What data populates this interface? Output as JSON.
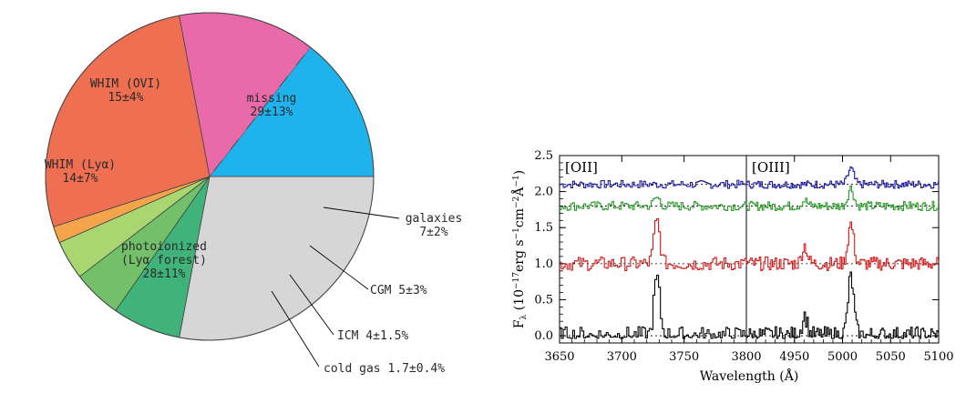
{
  "chart_data": [
    {
      "type": "pie",
      "slices": [
        {
          "key": "missing",
          "value": 29,
          "color": "#d6d6d6",
          "lines": [
            "missing",
            "29±13%"
          ]
        },
        {
          "key": "galaxies",
          "value": 7,
          "color": "#3fb37a",
          "lines": [
            "galaxies",
            "7±2%"
          ]
        },
        {
          "key": "cgm",
          "value": 5,
          "color": "#72c16a",
          "lines": [
            "CGM 5±3%"
          ]
        },
        {
          "key": "icm",
          "value": 4,
          "color": "#a9d670",
          "lines": [
            "ICM 4±1.5%"
          ]
        },
        {
          "key": "cold-gas",
          "value": 1.7,
          "color": "#f4a54c",
          "lines": [
            "cold gas 1.7±0.4%"
          ]
        },
        {
          "key": "photoionized",
          "value": 28,
          "color": "#ef6f52",
          "lines": [
            "photoionized",
            "(Lyα forest)",
            "28±11%"
          ]
        },
        {
          "key": "whim-lya",
          "value": 14,
          "color": "#e96aa9",
          "lines": [
            "WHIM (Lyα)",
            "14±7%"
          ]
        },
        {
          "key": "whim-ovi",
          "value": 15,
          "color": "#1fb3ee",
          "lines": [
            "WHIM (OVI)",
            "15±4%"
          ]
        }
      ],
      "start_angle_deg": 0,
      "direction": "clockwise"
    },
    {
      "type": "line",
      "panels": [
        {
          "label": "[OII]",
          "xlim": [
            3650,
            3800
          ],
          "xticks": [
            3650,
            3700,
            3750
          ],
          "line_center": 3727
        },
        {
          "label": "[OIII]",
          "xlim": [
            4900,
            5100
          ],
          "xticks": [
            4950,
            5000,
            5050,
            5100
          ],
          "line_center": 5008
        }
      ],
      "break_tick_label": "3800",
      "ylim": [
        -0.1,
        2.5
      ],
      "yticks": [
        "0.0",
        "0.5",
        "1.0",
        "1.5",
        "2.0",
        "2.5"
      ],
      "xlabel": "Wavelength (Å)",
      "ylabel": "F_λ (10^-17 erg s^-1 cm^-2 Å^-1)",
      "series": [
        {
          "color": "#1a1aa0",
          "baseline": 2.1,
          "noise": 0.035,
          "oii_peak": 0.0,
          "oiii_peak": 0.22,
          "oiii_blue": 0.0
        },
        {
          "color": "#2a9a2a",
          "baseline": 1.8,
          "noise": 0.04,
          "oii_peak": 0.12,
          "oiii_peak": 0.25,
          "oiii_blue": 0.08
        },
        {
          "color": "#d01a1a",
          "baseline": 1.0,
          "noise": 0.06,
          "oii_peak": 0.6,
          "oiii_peak": 0.55,
          "oiii_blue": 0.25
        },
        {
          "color": "#000000",
          "baseline": 0.0,
          "noise": 0.08,
          "oii_peak": 0.8,
          "oiii_peak": 0.82,
          "oiii_blue": 0.28
        }
      ]
    }
  ]
}
